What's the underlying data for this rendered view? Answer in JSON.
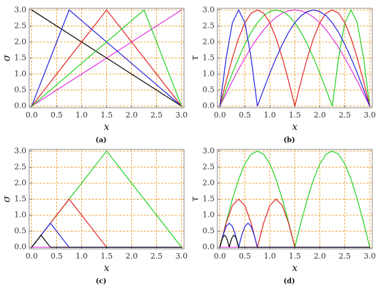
{
  "chart_data": [
    {
      "type": "line",
      "caption": "(a)",
      "xlabel": "x",
      "ylabel": "σ",
      "grid": true,
      "grid_color": "#f0a030",
      "xlim": [
        -0.05,
        3.05
      ],
      "ylim": [
        -0.05,
        3.05
      ],
      "xticks": [
        {
          "value": 0,
          "label": "0.0"
        },
        0.5,
        {
          "value": 1,
          "label": "1.0"
        },
        1.5,
        {
          "value": 2,
          "label": "2.0"
        },
        2.5,
        {
          "value": 3,
          "label": "3.0"
        }
      ],
      "yticks": [
        {
          "value": 0,
          "label": "0.0"
        },
        0.5,
        {
          "value": 1,
          "label": "1.0"
        },
        1.5,
        {
          "value": 2,
          "label": "2.0"
        },
        2.5,
        {
          "value": 3,
          "label": "3.0"
        }
      ],
      "x": [
        0,
        0.75,
        1.5,
        2.25,
        3
      ],
      "series": [
        {
          "color": "#e030e0",
          "values": [
            0,
            0.75,
            1.5,
            2.25,
            3
          ]
        },
        {
          "color": "#000000",
          "values": [
            3,
            2.25,
            1.5,
            0.75,
            0
          ]
        },
        {
          "color": "#2020e0",
          "values": [
            0,
            3,
            2,
            1,
            0
          ]
        },
        {
          "color": "#e02020",
          "values": [
            0,
            1.5,
            3,
            1.5,
            0
          ]
        },
        {
          "color": "#20d020",
          "values": [
            0,
            1,
            2,
            3,
            0
          ]
        }
      ]
    },
    {
      "type": "line",
      "caption": "(b)",
      "xlabel": "x",
      "ylabel": "τ",
      "grid": true,
      "grid_color": "#f0a030",
      "xlim": [
        -0.05,
        3.05
      ],
      "ylim": [
        -0.05,
        3.05
      ],
      "xticks": [
        {
          "value": 0,
          "label": "0.0"
        },
        0.5,
        {
          "value": 1,
          "label": "1.0"
        },
        1.5,
        {
          "value": 2,
          "label": "2.0"
        },
        2.5,
        {
          "value": 3,
          "label": "3.0"
        }
      ],
      "yticks": [
        {
          "value": 0,
          "label": "0.0"
        },
        0.5,
        {
          "value": 1,
          "label": "1.0"
        },
        1.5,
        {
          "value": 2,
          "label": "2.0"
        },
        2.5,
        {
          "value": 3,
          "label": "3.0"
        }
      ],
      "x": [
        0,
        0.125,
        0.25,
        0.375,
        0.5,
        0.625,
        0.75,
        0.875,
        1,
        1.125,
        1.25,
        1.375,
        1.5,
        1.625,
        1.75,
        1.875,
        2,
        2.125,
        2.25,
        2.375,
        2.5,
        2.625,
        2.75,
        2.875,
        3
      ],
      "series": [
        {
          "color": "#e030e0",
          "values": [
            0,
            0.39,
            0.78,
            1.15,
            1.5,
            1.83,
            2.12,
            2.38,
            2.6,
            2.77,
            2.9,
            2.97,
            3,
            2.97,
            2.9,
            2.77,
            2.6,
            2.38,
            2.12,
            1.83,
            1.5,
            1.15,
            0.78,
            0.39,
            0
          ]
        },
        {
          "color": "#20d020",
          "values": [
            0,
            0.52,
            1.03,
            1.5,
            1.93,
            2.3,
            2.6,
            2.82,
            2.95,
            3,
            2.95,
            2.82,
            2.6,
            2.3,
            1.93,
            1.5,
            1.03,
            0.52,
            0,
            1.5,
            2.6,
            3,
            2.6,
            1.5,
            0
          ]
        },
        {
          "color": "#e02020",
          "values": [
            0,
            0.78,
            1.5,
            2.12,
            2.6,
            2.9,
            3,
            2.9,
            2.6,
            2.12,
            1.5,
            0.78,
            0,
            0.78,
            1.5,
            2.12,
            2.6,
            2.9,
            3,
            2.9,
            2.6,
            2.12,
            1.5,
            0.78,
            0
          ]
        },
        {
          "color": "#2020e0",
          "values": [
            0,
            1.5,
            2.6,
            3,
            2.6,
            1.5,
            0,
            0.52,
            1.03,
            1.5,
            1.93,
            2.3,
            2.6,
            2.82,
            2.95,
            3,
            2.95,
            2.82,
            2.6,
            2.3,
            1.93,
            1.5,
            1.03,
            0.52,
            0
          ]
        }
      ]
    },
    {
      "type": "line",
      "caption": "(c)",
      "xlabel": "x",
      "ylabel": "σ",
      "grid": true,
      "grid_color": "#f0a030",
      "xlim": [
        -0.05,
        3.05
      ],
      "ylim": [
        -0.05,
        3.05
      ],
      "xticks": [
        {
          "value": 0,
          "label": "0.0"
        },
        0.5,
        {
          "value": 1,
          "label": "1.0"
        },
        1.5,
        {
          "value": 2,
          "label": "2.0"
        },
        2.5,
        {
          "value": 3,
          "label": "3.0"
        }
      ],
      "yticks": [
        {
          "value": 0,
          "label": "0.0"
        },
        0.5,
        {
          "value": 1,
          "label": "1.0"
        },
        1.5,
        {
          "value": 2,
          "label": "2.0"
        },
        2.5,
        {
          "value": 3,
          "label": "3.0"
        }
      ],
      "x": [
        0,
        0.1875,
        0.375,
        0.75,
        1.5,
        3
      ],
      "series": [
        {
          "color": "#e030e0",
          "values": [
            0,
            0,
            0,
            0,
            0,
            0
          ]
        },
        {
          "color": "#20d020",
          "values": [
            0,
            0.375,
            0.75,
            1.5,
            3,
            0
          ]
        },
        {
          "color": "#e02020",
          "values": [
            0,
            0.375,
            0.75,
            1.5,
            0,
            0
          ]
        },
        {
          "color": "#2020e0",
          "values": [
            0,
            0.375,
            0.75,
            0,
            0,
            0
          ]
        },
        {
          "color": "#000000",
          "values": [
            0,
            0.375,
            0,
            0,
            0,
            0
          ]
        }
      ]
    },
    {
      "type": "line",
      "caption": "(d)",
      "xlabel": "x",
      "ylabel": "τ",
      "grid": true,
      "grid_color": "#f0a030",
      "xlim": [
        -0.05,
        3.05
      ],
      "ylim": [
        -0.05,
        3.05
      ],
      "xticks": [
        {
          "value": 0,
          "label": "0.0"
        },
        0.5,
        {
          "value": 1,
          "label": "1.0"
        },
        1.5,
        {
          "value": 2,
          "label": "2.0"
        },
        2.5,
        {
          "value": 3,
          "label": "3.0"
        }
      ],
      "yticks": [
        {
          "value": 0,
          "label": "0.0"
        },
        0.5,
        {
          "value": 1,
          "label": "1.0"
        },
        1.5,
        {
          "value": 2,
          "label": "2.0"
        },
        2.5,
        {
          "value": 3,
          "label": "3.0"
        }
      ],
      "x": [
        0,
        0.125,
        0.25,
        0.375,
        0.5,
        0.625,
        0.75,
        0.875,
        1,
        1.125,
        1.25,
        1.375,
        1.5,
        1.625,
        1.75,
        1.875,
        2,
        2.125,
        2.25,
        2.375,
        2.5,
        2.625,
        2.75,
        2.875,
        3
      ],
      "series": [
        {
          "color": "#e030e0",
          "x": [
            0,
            3
          ],
          "values": [
            0,
            0
          ]
        },
        {
          "color": "#20d020",
          "values": [
            0,
            0.78,
            1.5,
            2.12,
            2.6,
            2.9,
            3,
            2.9,
            2.6,
            2.12,
            1.5,
            0.78,
            0,
            0.78,
            1.5,
            2.12,
            2.6,
            2.9,
            3,
            2.9,
            2.6,
            2.12,
            1.5,
            0.78,
            0
          ]
        },
        {
          "color": "#e02020",
          "values": [
            0,
            0.75,
            1.3,
            1.5,
            1.3,
            0.75,
            0,
            0.75,
            1.3,
            1.5,
            1.3,
            0.75,
            0,
            0,
            0,
            0,
            0,
            0,
            0,
            0,
            0,
            0,
            0,
            0,
            0
          ]
        },
        {
          "color": "#2020e0",
          "x": [
            0,
            0.0625,
            0.125,
            0.1875,
            0.25,
            0.3125,
            0.375,
            0.4375,
            0.5,
            0.5625,
            0.625,
            0.6875,
            0.75,
            3
          ],
          "values": [
            0,
            0.375,
            0.65,
            0.75,
            0.65,
            0.375,
            0,
            0.375,
            0.65,
            0.75,
            0.65,
            0.375,
            0,
            0
          ]
        },
        {
          "color": "#000000",
          "x": [
            0,
            0.03125,
            0.0625,
            0.09375,
            0.125,
            0.15625,
            0.1875,
            0.21875,
            0.25,
            0.28125,
            0.3125,
            0.34375,
            0.375,
            3
          ],
          "values": [
            0,
            0.19,
            0.32,
            0.375,
            0.32,
            0.19,
            0,
            0.19,
            0.32,
            0.375,
            0.32,
            0.19,
            0,
            0
          ]
        }
      ]
    }
  ]
}
